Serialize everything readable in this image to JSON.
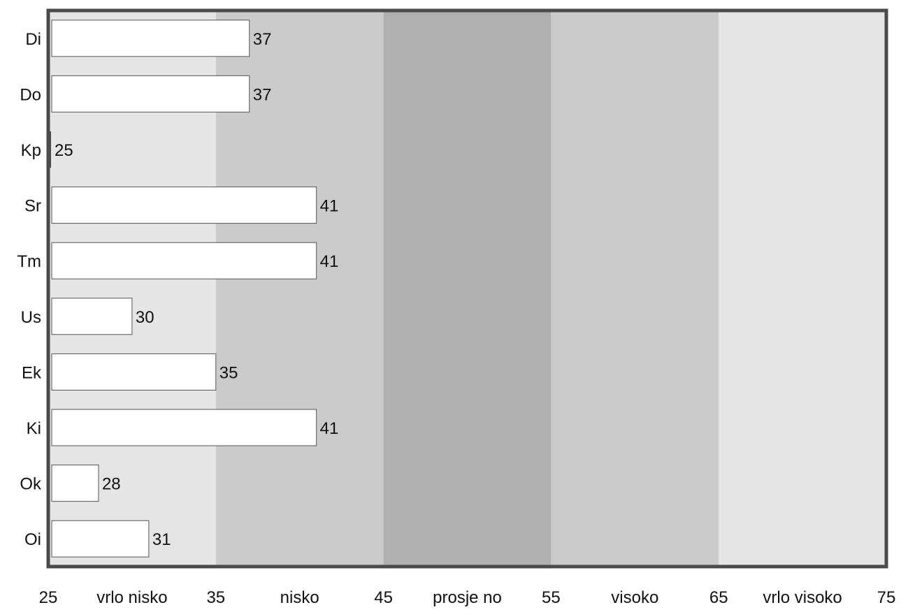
{
  "chart_data": {
    "type": "bar",
    "orientation": "horizontal",
    "categories": [
      "Di",
      "Do",
      "Kp",
      "Sr",
      "Tm",
      "Us",
      "Ek",
      "Ki",
      "Ok",
      "Oi"
    ],
    "values": [
      37,
      37,
      25,
      41,
      41,
      30,
      35,
      41,
      28,
      31
    ],
    "data_labels": [
      "37",
      "37",
      "25",
      "41",
      "41",
      "30",
      "35",
      "41",
      "28",
      "31"
    ],
    "xlim": [
      25,
      75
    ],
    "x_ticks": [
      {
        "value": 25,
        "label": "25"
      },
      {
        "value": 35,
        "label": "35"
      },
      {
        "value": 45,
        "label": "45"
      },
      {
        "value": 55,
        "label": "55"
      },
      {
        "value": 65,
        "label": "65"
      },
      {
        "value": 75,
        "label": "75"
      }
    ],
    "bands": [
      {
        "from": 25,
        "to": 35,
        "label": "vrlo nisko",
        "color": "#e5e5e5"
      },
      {
        "from": 35,
        "to": 45,
        "label": "nisko",
        "color": "#cbcbcb"
      },
      {
        "from": 45,
        "to": 55,
        "label": "prosje  no",
        "color": "#b0b0b0"
      },
      {
        "from": 55,
        "to": 65,
        "label": "visoko",
        "color": "#cbcbcb"
      },
      {
        "from": 65,
        "to": 75,
        "label": "vrlo visoko",
        "color": "#e5e5e5"
      }
    ],
    "bar_color": "#ffffff",
    "bar_edge_color": "#555555",
    "frame_color": "#4a4a4a",
    "title": "",
    "xlabel": "",
    "ylabel": "",
    "legend": "none",
    "grid": false
  }
}
